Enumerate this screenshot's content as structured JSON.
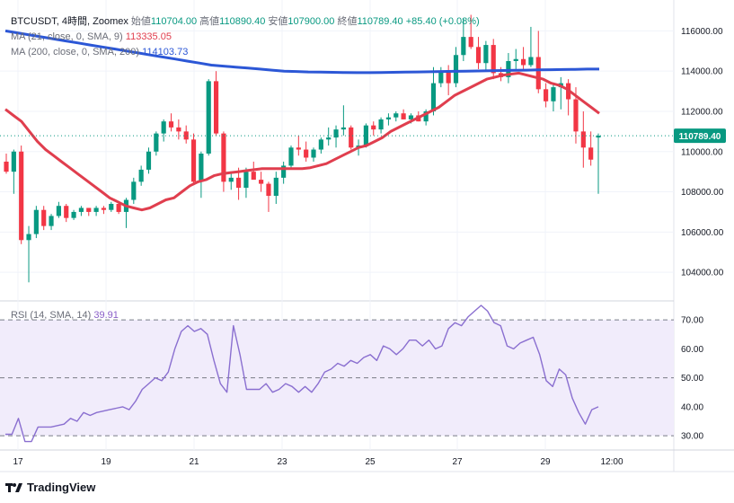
{
  "header": {
    "symbol": "BTCUSDT",
    "interval": "4時間",
    "exchange": "Zoomex",
    "open_label": "始値",
    "open": "110704.00",
    "high_label": "高値",
    "high": "110890.40",
    "low_label": "安値",
    "low": "107900.00",
    "close_label": "終値",
    "close": "110789.40",
    "change": "+85.40 (+0.08%)"
  },
  "ma21": {
    "label": "MA (21, close, 0, SMA, 9)",
    "value": "113335.05"
  },
  "ma200": {
    "label": "MA (200, close, 0, SMA, 200)",
    "value": "114103.73"
  },
  "rsi": {
    "label": "RSI (14, SMA, 14)",
    "value": "39.91"
  },
  "price_badge": "110789.40",
  "brand": "TradingView",
  "colors": {
    "up": "#089981",
    "down": "#f23645",
    "ma21": "#e03e4e",
    "ma200": "#2c57d6",
    "rsi": "#8a6fd0",
    "rsi_band": "#f1ecfb"
  },
  "chart_data": [
    {
      "type": "candlestick",
      "title": "BTCUSDT, 4時間, Zoomex",
      "y_ticks": [
        "104000.00",
        "106000.00",
        "108000.00",
        "110000.00",
        "112000.00",
        "114000.00",
        "116000.00"
      ],
      "ylim": [
        102800,
        117000
      ],
      "x_ticks": [
        "17",
        "19",
        "21",
        "23",
        "25",
        "27",
        "29",
        "12:00"
      ],
      "candles": [
        [
          109500,
          109900,
          108900,
          109000
        ],
        [
          109000,
          110100,
          107900,
          110000
        ],
        [
          110000,
          110300,
          105400,
          105600
        ],
        [
          105600,
          106300,
          103500,
          105900
        ],
        [
          105900,
          107300,
          105700,
          107100
        ],
        [
          107100,
          107300,
          106100,
          106300
        ],
        [
          106300,
          106900,
          106100,
          106800
        ],
        [
          106800,
          107500,
          106700,
          107300
        ],
        [
          107300,
          107400,
          106500,
          106700
        ],
        [
          106700,
          107100,
          106600,
          107000
        ],
        [
          107000,
          107300,
          106800,
          107200
        ],
        [
          107200,
          107200,
          106800,
          107000
        ],
        [
          107000,
          107300,
          106800,
          107200
        ],
        [
          107200,
          107300,
          106900,
          107100
        ],
        [
          107100,
          107500,
          107000,
          107400
        ],
        [
          107400,
          107500,
          106900,
          107000
        ],
        [
          107000,
          107700,
          106200,
          107600
        ],
        [
          107600,
          108700,
          107400,
          108500
        ],
        [
          108500,
          109300,
          108300,
          109100
        ],
        [
          109100,
          110200,
          108900,
          110000
        ],
        [
          110000,
          111000,
          109800,
          110900
        ],
        [
          110900,
          111600,
          110500,
          111500
        ],
        [
          111500,
          111900,
          111000,
          111200
        ],
        [
          111200,
          111600,
          110600,
          111000
        ],
        [
          111000,
          111300,
          110400,
          110600
        ],
        [
          110600,
          110900,
          108400,
          108500
        ],
        [
          108500,
          110000,
          107700,
          109900
        ],
        [
          109900,
          113600,
          109800,
          113500
        ],
        [
          113500,
          114000,
          110800,
          110900
        ],
        [
          110900,
          111000,
          108000,
          108500
        ],
        [
          108500,
          109000,
          108100,
          108700
        ],
        [
          108700,
          109200,
          107600,
          108200
        ],
        [
          108200,
          109200,
          107700,
          109000
        ],
        [
          109000,
          109500,
          108700,
          108600
        ],
        [
          108600,
          109000,
          108000,
          108400
        ],
        [
          108400,
          108500,
          107000,
          107800
        ],
        [
          107800,
          109000,
          107400,
          108700
        ],
        [
          108700,
          109500,
          108400,
          109300
        ],
        [
          109300,
          110300,
          109100,
          110200
        ],
        [
          110200,
          110800,
          109800,
          110100
        ],
        [
          110100,
          110500,
          109500,
          109700
        ],
        [
          109700,
          110200,
          109500,
          110100
        ],
        [
          110100,
          110700,
          109900,
          110600
        ],
        [
          110600,
          111200,
          110300,
          110700
        ],
        [
          110700,
          111300,
          110200,
          111100
        ],
        [
          111100,
          112300,
          110800,
          111200
        ],
        [
          111200,
          111300,
          110100,
          110200
        ],
        [
          110200,
          110600,
          109800,
          110300
        ],
        [
          110300,
          111400,
          110200,
          111300
        ],
        [
          111300,
          111500,
          110800,
          111100
        ],
        [
          111100,
          111700,
          110900,
          111600
        ],
        [
          111600,
          111900,
          111300,
          111700
        ],
        [
          111700,
          112000,
          111500,
          111900
        ],
        [
          111900,
          112100,
          111600,
          111600
        ],
        [
          111600,
          111900,
          111400,
          111800
        ],
        [
          111800,
          112000,
          111500,
          111500
        ],
        [
          111500,
          112100,
          111300,
          112000
        ],
        [
          112000,
          114200,
          111800,
          113400
        ],
        [
          113400,
          114200,
          113200,
          114000
        ],
        [
          114000,
          114300,
          112800,
          113400
        ],
        [
          113400,
          115200,
          113200,
          114800
        ],
        [
          114800,
          116600,
          114500,
          115700
        ],
        [
          115700,
          116800,
          115100,
          115200
        ],
        [
          115200,
          115700,
          114100,
          114400
        ],
        [
          114400,
          115500,
          114000,
          115300
        ],
        [
          115300,
          115600,
          113600,
          113900
        ],
        [
          113900,
          114200,
          113500,
          113700
        ],
        [
          113700,
          114900,
          113400,
          114500
        ],
        [
          114500,
          115100,
          114100,
          114600
        ],
        [
          114600,
          115200,
          114000,
          114300
        ],
        [
          114300,
          116200,
          114200,
          114700
        ],
        [
          114700,
          116000,
          112900,
          113100
        ],
        [
          113100,
          113400,
          112200,
          112500
        ],
        [
          112500,
          113400,
          112000,
          113200
        ],
        [
          113200,
          113700,
          112100,
          113400
        ],
        [
          113400,
          113600,
          111800,
          112600
        ],
        [
          112600,
          113200,
          110400,
          111000
        ],
        [
          111000,
          112000,
          109200,
          110200
        ],
        [
          110200,
          111000,
          109300,
          109600
        ],
        [
          110700,
          110900,
          107900,
          110789
        ]
      ],
      "series": [
        {
          "name": "MA 21",
          "values": [
            112100,
            111800,
            111500,
            111000,
            110500,
            110100,
            109800,
            109500,
            109200,
            108900,
            108600,
            108300,
            108000,
            107700,
            107500,
            107300,
            107200,
            107100,
            107200,
            107400,
            107600,
            107700,
            108000,
            108300,
            108500,
            108600,
            108800,
            108900,
            108950,
            109000,
            109050,
            109100,
            109150,
            109150,
            109150,
            109150,
            109150,
            109150,
            109200,
            109300,
            109400,
            109600,
            109800,
            110000,
            110200,
            110300,
            110500,
            110700,
            111000,
            111200,
            111400,
            111600,
            111800,
            112000,
            112200,
            112500,
            112800,
            113000,
            113200,
            113400,
            113600,
            113700,
            113800,
            113850,
            113900,
            113800,
            113700,
            113600,
            113400,
            113300,
            113100,
            112800,
            112500,
            112200,
            111900
          ]
        },
        {
          "name": "MA 200",
          "values": [
            116000,
            115900,
            115800,
            115700,
            115600,
            115500,
            115400,
            115300,
            115200,
            115100,
            115000,
            114900,
            114800,
            114700,
            114600,
            114500,
            114400,
            114300,
            114250,
            114200,
            114150,
            114100,
            114050,
            114000,
            113980,
            113960,
            113950,
            113940,
            113930,
            113925,
            113925,
            113930,
            113940,
            113950,
            113960,
            113970,
            113980,
            113990,
            114000,
            114010,
            114020,
            114030,
            114040,
            114050,
            114060,
            114070,
            114080,
            114090,
            114100,
            114100
          ]
        }
      ]
    },
    {
      "type": "line",
      "title": "RSI (14, SMA, 14)",
      "y_ticks": [
        "30.00",
        "40.00",
        "50.00",
        "60.00",
        "70.00"
      ],
      "ylim": [
        26,
        75
      ],
      "levels": [
        30,
        50,
        70
      ],
      "series": [
        {
          "name": "RSI",
          "values": [
            30.5,
            30.5,
            36,
            28,
            28,
            33,
            33,
            33,
            33.5,
            34,
            36,
            35,
            38,
            37,
            38,
            38.5,
            39,
            39.5,
            40,
            39,
            42,
            46,
            48,
            50,
            49,
            52,
            60,
            66,
            68,
            66,
            67,
            65,
            56,
            48,
            45,
            68,
            58,
            46,
            46,
            46,
            48,
            45,
            46,
            48,
            47,
            45,
            47,
            45,
            48,
            52,
            53,
            55,
            54,
            56,
            55,
            57,
            58,
            56,
            61,
            60,
            58,
            60,
            63,
            63,
            61,
            63,
            60,
            61,
            67,
            69,
            68,
            71,
            73,
            75,
            73,
            69,
            68,
            61,
            60,
            62,
            63,
            64,
            58,
            49,
            47,
            53,
            51,
            43,
            38,
            34,
            39,
            40
          ]
        }
      ]
    }
  ]
}
